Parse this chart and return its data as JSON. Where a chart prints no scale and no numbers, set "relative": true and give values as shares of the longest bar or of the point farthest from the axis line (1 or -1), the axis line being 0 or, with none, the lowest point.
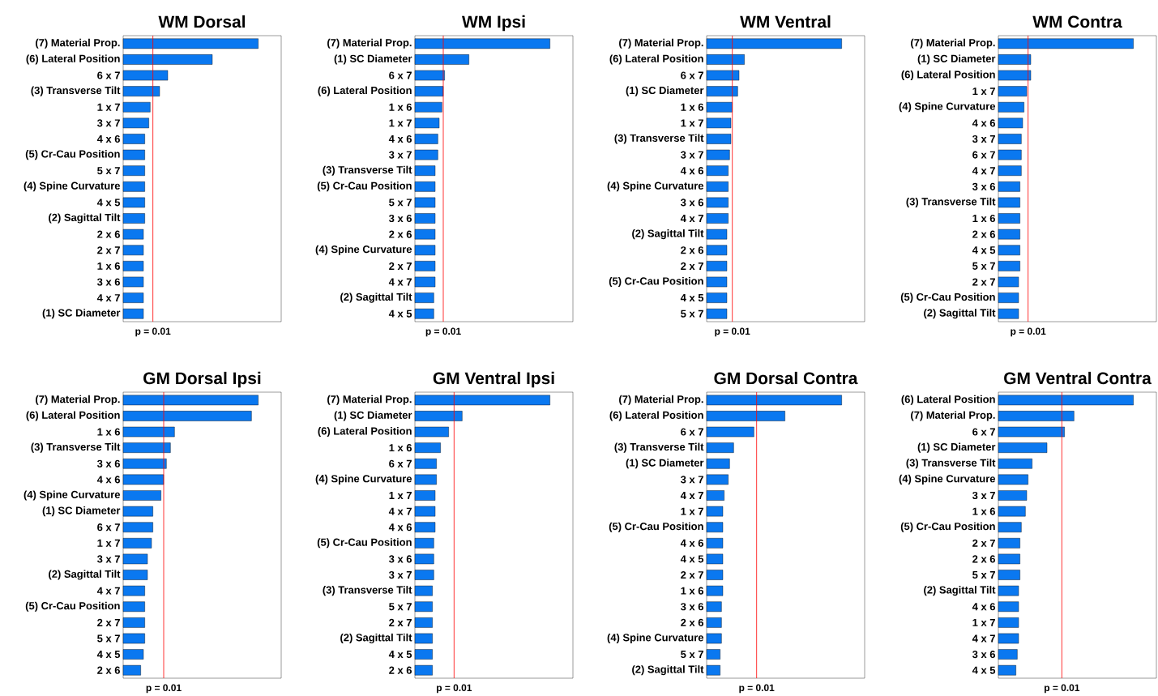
{
  "chart_data": [
    {
      "type": "bar",
      "orientation": "horizontal",
      "relative": true,
      "title": "WM Dorsal",
      "color": "#0a78f0",
      "categories": [
        "(7) Material Prop.",
        "(6) Lateral Position",
        "6 x 7",
        "(3) Transverse Tilt",
        "1 x 7",
        "3 x 7",
        "4 x 6",
        "(5) Cr-Cau Position",
        "5 x 7",
        "(4) Spine Curvature",
        "4 x 5",
        "(2) Sagittal Tilt",
        "2 x 6",
        "2 x 7",
        "1 x 6",
        "3 x 6",
        "4 x 7",
        "(1) SC Diameter"
      ],
      "values": [
        1,
        0.66,
        0.33,
        0.27,
        0.2,
        0.19,
        0.16,
        0.16,
        0.16,
        0.16,
        0.16,
        0.16,
        0.15,
        0.15,
        0.15,
        0.15,
        0.15,
        0.15
      ],
      "ref_lines": [
        {
          "axis": "x",
          "value": 0.22,
          "color": "#ff0000"
        }
      ],
      "annotations": [
        "p = 0.01"
      ]
    },
    {
      "type": "bar",
      "orientation": "horizontal",
      "relative": true,
      "title": "WM Ipsi",
      "color": "#0a78f0",
      "categories": [
        "(7) Material Prop.",
        "(1) SC Diameter",
        "6 x 7",
        "(6) Lateral Position",
        "1 x 6",
        "1 x 7",
        "4 x 6",
        "3 x 7",
        "(3) Transverse Tilt",
        "(5) Cr-Cau Position",
        "5 x 7",
        "3 x 6",
        "2 x 6",
        "(4) Spine Curvature",
        "2 x 7",
        "4 x 7",
        "(2) Sagittal Tilt",
        "4 x 5"
      ],
      "values": [
        1,
        0.4,
        0.22,
        0.21,
        0.2,
        0.18,
        0.17,
        0.17,
        0.15,
        0.15,
        0.15,
        0.15,
        0.15,
        0.15,
        0.15,
        0.15,
        0.14,
        0.14
      ],
      "ref_lines": [
        {
          "axis": "x",
          "value": 0.21,
          "color": "#ff0000"
        }
      ],
      "annotations": [
        "p = 0.01"
      ]
    },
    {
      "type": "bar",
      "orientation": "horizontal",
      "relative": true,
      "title": "WM Ventral",
      "color": "#0a78f0",
      "categories": [
        "(7) Material Prop.",
        "(6) Lateral Position",
        "6 x 7",
        "(1) SC Diameter",
        "1 x 6",
        "1 x 7",
        "(3) Transverse Tilt",
        "3 x 7",
        "4 x 6",
        "(4) Spine Curvature",
        "3 x 6",
        "4 x 7",
        "(2) Sagittal Tilt",
        "2 x 6",
        "2 x 7",
        "(5) Cr-Cau Position",
        "4 x 5",
        "5 x 7"
      ],
      "values": [
        1,
        0.28,
        0.24,
        0.23,
        0.19,
        0.18,
        0.18,
        0.17,
        0.16,
        0.16,
        0.16,
        0.16,
        0.15,
        0.15,
        0.15,
        0.15,
        0.15,
        0.15
      ],
      "ref_lines": [
        {
          "axis": "x",
          "value": 0.19,
          "color": "#ff0000"
        }
      ],
      "annotations": [
        "p = 0.01"
      ]
    },
    {
      "type": "bar",
      "orientation": "horizontal",
      "relative": true,
      "title": "WM Contra",
      "color": "#0a78f0",
      "categories": [
        "(7) Material Prop.",
        "(1) SC Diameter",
        "(6) Lateral Position",
        "1 x 7",
        "(4) Spine Curvature",
        "4 x 6",
        "3 x 7",
        "6 x 7",
        "4 x 7",
        "3 x 6",
        "(3) Transverse Tilt",
        "1 x 6",
        "2 x 6",
        "4 x 5",
        "5 x 7",
        "2 x 7",
        "(5) Cr-Cau Position",
        "(2) Sagittal Tilt"
      ],
      "values": [
        1,
        0.24,
        0.24,
        0.21,
        0.19,
        0.18,
        0.17,
        0.17,
        0.17,
        0.16,
        0.16,
        0.16,
        0.16,
        0.16,
        0.16,
        0.15,
        0.15,
        0.15
      ],
      "ref_lines": [
        {
          "axis": "x",
          "value": 0.22,
          "color": "#ff0000"
        }
      ],
      "annotations": [
        "p = 0.01"
      ]
    },
    {
      "type": "bar",
      "orientation": "horizontal",
      "relative": true,
      "title": "GM Dorsal Ipsi",
      "color": "#0a78f0",
      "categories": [
        "(7) Material Prop.",
        "(6) Lateral Position",
        "1 x 6",
        "(3) Transverse Tilt",
        "3 x 6",
        "4 x 6",
        "(4) Spine Curvature",
        "(1) SC Diameter",
        "6 x 7",
        "1 x 7",
        "3 x 7",
        "(2) Sagittal Tilt",
        "4 x 7",
        "(5) Cr-Cau Position",
        "2 x 7",
        "5 x 7",
        "4 x 5",
        "2 x 6"
      ],
      "values": [
        1,
        0.95,
        0.38,
        0.35,
        0.32,
        0.3,
        0.28,
        0.22,
        0.22,
        0.21,
        0.18,
        0.18,
        0.16,
        0.16,
        0.16,
        0.16,
        0.15,
        0.13
      ],
      "ref_lines": [
        {
          "axis": "x",
          "value": 0.3,
          "color": "#ff0000"
        }
      ],
      "annotations": [
        "p = 0.01"
      ]
    },
    {
      "type": "bar",
      "orientation": "horizontal",
      "relative": true,
      "title": "GM Ventral Ipsi",
      "color": "#0a78f0",
      "categories": [
        "(7) Material Prop.",
        "(1) SC Diameter",
        "(6) Lateral Position",
        "1 x 6",
        "6 x 7",
        "(4) Spine Curvature",
        "1 x 7",
        "4 x 7",
        "4 x 6",
        "(5) Cr-Cau Position",
        "3 x 6",
        "3 x 7",
        "(3) Transverse Tilt",
        "5 x 7",
        "2 x 7",
        "(2) Sagittal Tilt",
        "4 x 5",
        "2 x 6"
      ],
      "values": [
        1,
        0.35,
        0.25,
        0.19,
        0.16,
        0.16,
        0.15,
        0.15,
        0.15,
        0.14,
        0.14,
        0.14,
        0.13,
        0.13,
        0.13,
        0.13,
        0.13,
        0.13
      ],
      "ref_lines": [
        {
          "axis": "x",
          "value": 0.29,
          "color": "#ff0000"
        }
      ],
      "annotations": [
        "p = 0.01"
      ]
    },
    {
      "type": "bar",
      "orientation": "horizontal",
      "relative": true,
      "title": "GM Dorsal Contra",
      "color": "#0a78f0",
      "categories": [
        "(7) Material Prop.",
        "(6) Lateral Position",
        "6 x 7",
        "(3) Transverse Tilt",
        "(1) SC Diameter",
        "3 x 7",
        "4 x 7",
        "1 x 7",
        "(5) Cr-Cau Position",
        "4 x 6",
        "4 x 5",
        "2 x 7",
        "1 x 6",
        "3 x 6",
        "2 x 6",
        "(4) Spine Curvature",
        "5 x 7",
        "(2) Sagittal Tilt"
      ],
      "values": [
        1,
        0.58,
        0.35,
        0.2,
        0.17,
        0.16,
        0.13,
        0.12,
        0.12,
        0.12,
        0.12,
        0.12,
        0.12,
        0.11,
        0.11,
        0.11,
        0.1,
        0.1
      ],
      "ref_lines": [
        {
          "axis": "x",
          "value": 0.37,
          "color": "#ff0000"
        }
      ],
      "annotations": [
        "p = 0.01"
      ]
    },
    {
      "type": "bar",
      "orientation": "horizontal",
      "relative": true,
      "title": "GM Ventral Contra",
      "color": "#0a78f0",
      "categories": [
        "(6) Lateral Position",
        "(7) Material Prop.",
        "6 x 7",
        "(1) SC Diameter",
        "(3) Transverse Tilt",
        "(4) Spine Curvature",
        "3 x 7",
        "1 x 6",
        "(5) Cr-Cau Position",
        "2 x 7",
        "2 x 6",
        "5 x 7",
        "(2) Sagittal Tilt",
        "4 x 6",
        "1 x 7",
        "4 x 7",
        "3 x 6",
        "4 x 5"
      ],
      "values": [
        1,
        0.56,
        0.49,
        0.36,
        0.25,
        0.22,
        0.21,
        0.2,
        0.17,
        0.16,
        0.16,
        0.16,
        0.15,
        0.15,
        0.15,
        0.15,
        0.14,
        0.13
      ],
      "ref_lines": [
        {
          "axis": "x",
          "value": 0.47,
          "color": "#ff0000"
        }
      ],
      "annotations": [
        "p = 0.01"
      ]
    }
  ]
}
